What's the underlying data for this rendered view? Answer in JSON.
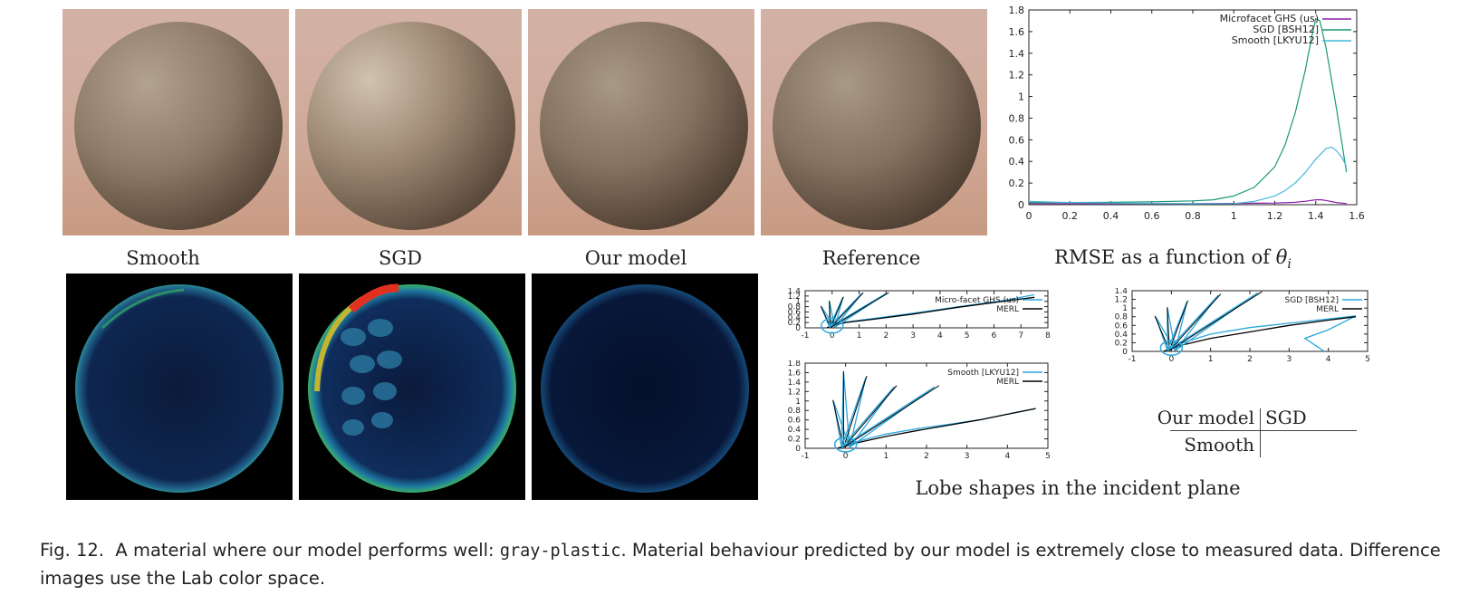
{
  "panels": {
    "render_labels": [
      "Smooth",
      "SGD",
      "Our model",
      "Reference"
    ],
    "rmse_label_prefix": "RMSE as a function of ",
    "rmse_label_symbol": "θ",
    "rmse_label_sub": "i",
    "lobe_label": "Lobe shapes in the incident plane"
  },
  "layout_legend": {
    "top_left": "Our model",
    "top_right": "SGD",
    "bottom_left": "Smooth"
  },
  "caption": {
    "fig_num": "Fig. 12.",
    "text_before": "A material where our model performs well: ",
    "material": "gray-plastic",
    "text_after": ". Material behaviour predicted by our model is extremely close to measured data. Difference images use the Lab color space."
  },
  "colors": {
    "ours": "#8b1fa9",
    "sgd": "#1a9a72",
    "smooth": "#44b8dc",
    "merl": "#000000",
    "lobe_model": "#2aa7dc"
  },
  "chart_data": [
    {
      "type": "line",
      "title": "RMSE as a function of θi",
      "xlabel": "",
      "ylabel": "",
      "xlim": [
        0,
        1.6
      ],
      "ylim": [
        0,
        1.8
      ],
      "x_ticks": [
        "0",
        "0.2",
        "0.4",
        "0.6",
        "0.8",
        "1",
        "1.2",
        "1.4",
        "1.6"
      ],
      "y_ticks": [
        "0",
        "0.2",
        "0.4",
        "0.6",
        "0.8",
        "1",
        "1.2",
        "1.4",
        "1.6",
        "1.8"
      ],
      "legend_position": "top-right",
      "grid": false,
      "series": [
        {
          "name": "Microfacet GHS (us)",
          "color": "#8b1fa9",
          "x": [
            0,
            0.4,
            0.8,
            1.0,
            1.2,
            1.3,
            1.35,
            1.4,
            1.43,
            1.46,
            1.5,
            1.55
          ],
          "y": [
            0.01,
            0.01,
            0.01,
            0.012,
            0.015,
            0.022,
            0.032,
            0.045,
            0.045,
            0.035,
            0.02,
            0.01
          ]
        },
        {
          "name": "SGD [BSH12]",
          "color": "#1a9a72",
          "x": [
            0,
            0.2,
            0.4,
            0.6,
            0.8,
            0.9,
            1.0,
            1.1,
            1.2,
            1.25,
            1.3,
            1.35,
            1.38,
            1.4,
            1.42,
            1.45,
            1.5,
            1.55
          ],
          "y": [
            0.02,
            0.02,
            0.022,
            0.026,
            0.035,
            0.045,
            0.08,
            0.16,
            0.35,
            0.55,
            0.85,
            1.25,
            1.55,
            1.72,
            1.7,
            1.45,
            0.9,
            0.3
          ]
        },
        {
          "name": "Smooth [LKYU12]",
          "color": "#44b8dc",
          "x": [
            0,
            0.2,
            0.4,
            0.6,
            0.8,
            1.0,
            1.1,
            1.2,
            1.25,
            1.3,
            1.35,
            1.4,
            1.45,
            1.48,
            1.5,
            1.53,
            1.55
          ],
          "y": [
            0.03,
            0.02,
            0.015,
            0.01,
            0.008,
            0.01,
            0.03,
            0.08,
            0.13,
            0.2,
            0.3,
            0.42,
            0.52,
            0.53,
            0.5,
            0.43,
            0.35
          ]
        }
      ]
    },
    {
      "type": "line",
      "title": "",
      "xlim": [
        -1,
        8
      ],
      "ylim": [
        0,
        1.4
      ],
      "x_ticks": [
        "-1",
        "0",
        "1",
        "2",
        "3",
        "4",
        "5",
        "6",
        "7",
        "8"
      ],
      "y_ticks": [
        "0",
        "0.2",
        "0.4",
        "0.6",
        "0.8",
        "1",
        "1.2",
        "1.4"
      ],
      "legend_position": "top-right",
      "series": [
        {
          "name": "Micro-facet GHS (us)",
          "color": "#2aa7dc",
          "x": [
            -0.2,
            0,
            0.5,
            1.5,
            3,
            4.7,
            6.5,
            7.5
          ],
          "y": [
            0,
            0.1,
            0.22,
            0.35,
            0.55,
            0.8,
            1.05,
            1.25
          ]
        },
        {
          "name": "MERL",
          "color": "#000000",
          "x": [
            -0.2,
            0,
            0.5,
            1.5,
            3,
            4.7,
            6.5,
            7.5
          ],
          "y": [
            0,
            0.08,
            0.2,
            0.32,
            0.52,
            0.78,
            1.02,
            1.15
          ]
        }
      ]
    },
    {
      "type": "line",
      "title": "",
      "xlim": [
        -1,
        5
      ],
      "ylim": [
        0,
        1.4
      ],
      "x_ticks": [
        "-1",
        "0",
        "1",
        "2",
        "3",
        "4",
        "5"
      ],
      "y_ticks": [
        "0",
        "0.2",
        "0.4",
        "0.6",
        "0.8",
        "1",
        "1.2",
        "1.4"
      ],
      "legend_position": "top-right",
      "series": [
        {
          "name": "SGD [BSH12]",
          "color": "#2aa7dc",
          "x": [
            -0.2,
            0.3,
            1.0,
            2.0,
            3.0,
            4.0,
            4.7,
            4.0,
            3.4,
            3.9
          ],
          "y": [
            0,
            0.2,
            0.4,
            0.55,
            0.65,
            0.75,
            0.82,
            0.5,
            0.3,
            0
          ]
        },
        {
          "name": "MERL",
          "color": "#000000",
          "x": [
            -0.2,
            0.3,
            1.0,
            2.0,
            3.0,
            4.0,
            4.7
          ],
          "y": [
            0,
            0.15,
            0.3,
            0.45,
            0.6,
            0.72,
            0.8
          ]
        }
      ]
    },
    {
      "type": "line",
      "title": "",
      "xlim": [
        -1,
        5
      ],
      "ylim": [
        0,
        1.8
      ],
      "x_ticks": [
        "-1",
        "0",
        "1",
        "2",
        "3",
        "4",
        "5"
      ],
      "y_ticks": [
        "0",
        "0.2",
        "0.4",
        "0.6",
        "0.8",
        "1",
        "1.2",
        "1.4",
        "1.6",
        "1.8"
      ],
      "legend_position": "top-right",
      "series": [
        {
          "name": "Smooth [LKYU12]",
          "color": "#2aa7dc",
          "x": [
            -0.2,
            0.3,
            1.0,
            1.8,
            2.5,
            3.3,
            4.0,
            4.7
          ],
          "y": [
            0,
            0.15,
            0.3,
            0.42,
            0.5,
            0.6,
            0.72,
            0.84
          ]
        },
        {
          "name": "MERL",
          "color": "#000000",
          "x": [
            -0.2,
            0.3,
            1.0,
            1.8,
            2.5,
            3.3,
            4.0,
            4.7
          ],
          "y": [
            0,
            0.12,
            0.25,
            0.38,
            0.48,
            0.6,
            0.72,
            0.84
          ]
        }
      ]
    }
  ]
}
